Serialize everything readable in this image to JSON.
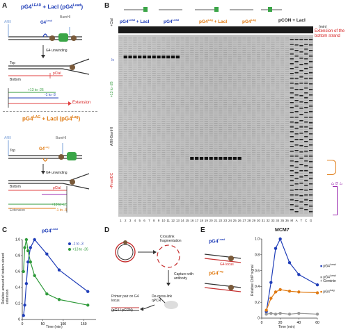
{
  "panelA": {
    "letter": "A",
    "top": {
      "title": "pG4",
      "title_sup1": "LEAD",
      "title_mid": "+ LacI (pG4",
      "title_sup2": "Lead",
      "title_end": ")",
      "g4_label": "G4",
      "g4_sup": "Lead",
      "bamhi": "BamHI",
      "unwinding": "G4 unwinding",
      "top_strand": "Top",
      "bottom_strand": "Bottom",
      "pcla": "pClaI",
      "range1": "+13 to -26",
      "range2": "-1 to -3",
      "extension": "Extension"
    },
    "bottom": {
      "title": "pG4",
      "title_sup1": "LAG",
      "title_mid": "+ LacI (pG4",
      "title_sup2": "Lag",
      "title_end": ")",
      "g4_label": "G4",
      "g4_sup": "Lag",
      "bamhi": "BamHI",
      "unwinding": "G4 unwinding",
      "top_strand": "Top",
      "bottom_strand": "Bottom",
      "pcla": "pClaI",
      "range1": "+13 to -26",
      "range2": "-1 to -3",
      "extension": "Extension"
    }
  },
  "panelB": {
    "letter": "B",
    "lanes_header": [
      {
        "label": "pG4",
        "sup": "Lead",
        "suffix": " + LacI",
        "color": "#1f3db8"
      },
      {
        "label": "pG4",
        "sup": "Lead",
        "suffix": "",
        "color": "#1f3db8"
      },
      {
        "label": "pG4",
        "sup": "Lag",
        "suffix": " + LacI",
        "color": "#e07a12"
      },
      {
        "label": "pG4",
        "sup": "Lag",
        "suffix": "",
        "color": "#e07a12"
      },
      {
        "label": "pCON + LacI",
        "sup": "",
        "suffix": "",
        "color": "#222"
      }
    ],
    "min_label": "(min)",
    "cla_label": "+ClaI",
    "ext_note": "Extension of the bottom strand",
    "side_aft": "AflIII-BamHI",
    "side_range": "+13 to -26",
    "side_pnt": "+PnaeIDC",
    "side_right_range": "-1 to -3",
    "lane_numbers": [
      "1",
      "2",
      "3",
      "4",
      "5",
      "6",
      "7",
      "8",
      "9",
      "10",
      "11",
      "12",
      "13",
      "14",
      "15",
      "16",
      "17",
      "18",
      "19",
      "20",
      "21",
      "22",
      "23",
      "24",
      "25",
      "26",
      "27",
      "28",
      "29",
      "30",
      "31",
      "32",
      "33",
      "34",
      "35",
      "36",
      "M",
      "A",
      "T",
      "C",
      "G"
    ]
  },
  "panelC": {
    "letter": "C",
    "title": "pG4",
    "title_sup": "Lead",
    "ylabel": "Relative amount of bottom-strand extension",
    "xlabel": "Time (min)",
    "chart_data": {
      "type": "line",
      "xlim": [
        0,
        180
      ],
      "ylim": [
        0,
        1
      ],
      "xticks": [
        0,
        50,
        100,
        150
      ],
      "yticks": [
        0,
        0.2,
        0.4,
        0.6,
        0.8,
        1.0
      ],
      "series": [
        {
          "name": "-1 to -3",
          "color": "#1f3db8",
          "x": [
            3,
            6,
            10,
            14,
            20,
            30,
            60,
            90,
            160
          ],
          "y": [
            0.05,
            0.18,
            0.45,
            0.72,
            0.9,
            1.0,
            0.82,
            0.62,
            0.35
          ]
        },
        {
          "name": "+13 to -26",
          "color": "#2f9a3a",
          "x": [
            3,
            6,
            10,
            14,
            20,
            30,
            60,
            90,
            160
          ],
          "y": [
            0.6,
            0.9,
            1.0,
            0.86,
            0.72,
            0.55,
            0.32,
            0.25,
            0.18
          ]
        }
      ]
    }
  },
  "panelD": {
    "letter": "D",
    "crosslink": "Crosslink fragmentation",
    "capture": "Capture with antibody",
    "primer": "Primer pair on G4 locus",
    "decrosslink": "De-cross-link qPCR",
    "ratio": "(pG4 / pCON)"
  },
  "panelE": {
    "letter": "E",
    "lead_label": "pG4",
    "lead_sup": "Lead",
    "lag_label": "pG4",
    "lag_sup": "Lag",
    "locus": "G4 locus",
    "chart_data": {
      "type": "line",
      "title": "MCM7",
      "ylabel": "Relative ChIP signal",
      "xlabel": "Time (min)",
      "xlim": [
        0,
        60
      ],
      "ylim": [
        0,
        1
      ],
      "xticks": [
        0,
        20,
        40,
        60
      ],
      "yticks": [
        0,
        0.2,
        0.4,
        0.6,
        0.8,
        1.0
      ],
      "series": [
        {
          "name": "pG4 Lead",
          "color": "#1f3db8",
          "x": [
            5,
            10,
            15,
            20,
            30,
            40,
            60
          ],
          "y": [
            0.08,
            0.45,
            0.88,
            1.0,
            0.7,
            0.55,
            0.42
          ]
        },
        {
          "name": "pG4 Lead + Geminin",
          "color": "#999999",
          "x": [
            5,
            10,
            15,
            20,
            30,
            40,
            60
          ],
          "y": [
            0.05,
            0.06,
            0.05,
            0.06,
            0.05,
            0.06,
            0.05
          ]
        },
        {
          "name": "pG4 Lag",
          "color": "#e07a12",
          "x": [
            5,
            10,
            15,
            20,
            30,
            40,
            60
          ],
          "y": [
            0.1,
            0.25,
            0.33,
            0.36,
            0.34,
            0.33,
            0.32
          ]
        }
      ],
      "legend": [
        {
          "name": "pG4",
          "sup": "Lead",
          "extra": "",
          "color": "#1f3db8"
        },
        {
          "name": "pG4",
          "sup": "Lead",
          "extra": "+ Geminin",
          "color": "#999999"
        },
        {
          "name": "pG4",
          "sup": "Lag",
          "extra": "",
          "color": "#e07a12"
        }
      ]
    }
  }
}
